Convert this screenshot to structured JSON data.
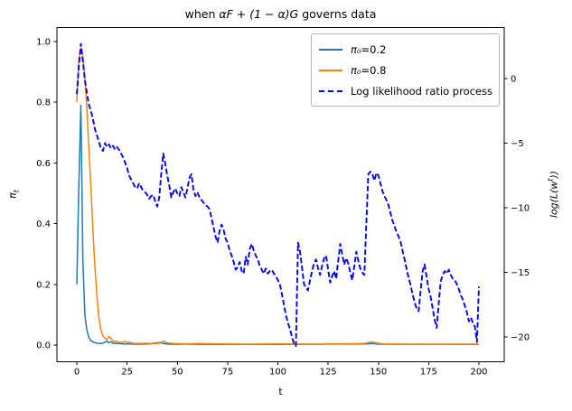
{
  "figure": {
    "title": {
      "pre": "when ",
      "math": "αF + (1 − α)G",
      "post": " governs data"
    },
    "xlabel": "t",
    "ylabel_left": {
      "base": "π",
      "sub": "t"
    },
    "ylabel_right": {
      "pre": "log(L(w",
      "sup": "t",
      "post": "))"
    }
  },
  "legend": {
    "items": [
      {
        "math": "π₀",
        "rest": "=0.2",
        "color": "#1f77b4",
        "dash": false
      },
      {
        "math": "π₀",
        "rest": "=0.8",
        "color": "#ff7f0e",
        "dash": false
      },
      {
        "math": "",
        "rest": "Log likelihood ratio process",
        "color": "#0000ee",
        "dash": true
      }
    ]
  },
  "chart_data": {
    "type": "line",
    "title": "when αF + (1 − α)G governs data",
    "xlabel": "t",
    "ylabel_left": "π_t",
    "ylabel_right": "log(L(w^t))",
    "grid": false,
    "legend_position": "upper right",
    "xlim": [
      -10,
      212
    ],
    "ylim_left": [
      -0.05,
      1.05
    ],
    "ylim_right": [
      -21.9,
      3.9
    ],
    "x_ticks": [
      {
        "v": 0,
        "label": "0"
      },
      {
        "v": 25,
        "label": "25"
      },
      {
        "v": 50,
        "label": "50"
      },
      {
        "v": 75,
        "label": "75"
      },
      {
        "v": 100,
        "label": "100"
      },
      {
        "v": 125,
        "label": "125"
      },
      {
        "v": 150,
        "label": "150"
      },
      {
        "v": 175,
        "label": "175"
      },
      {
        "v": 200,
        "label": "200"
      }
    ],
    "y_left_ticks": [
      {
        "v": 0.0,
        "label": "0.0"
      },
      {
        "v": 0.2,
        "label": "0.2"
      },
      {
        "v": 0.4,
        "label": "0.4"
      },
      {
        "v": 0.6,
        "label": "0.6"
      },
      {
        "v": 0.8,
        "label": "0.8"
      },
      {
        "v": 1.0,
        "label": "1.0"
      }
    ],
    "y_right_ticks": [
      {
        "v": 0,
        "label": "0"
      },
      {
        "v": -5,
        "label": "−5"
      },
      {
        "v": -10,
        "label": "−10"
      },
      {
        "v": -15,
        "label": "−15"
      },
      {
        "v": -20,
        "label": "−20"
      }
    ],
    "series": [
      {
        "name": "π0=0.2",
        "axis": "left",
        "color": "#1f77b4",
        "style": "solid",
        "width": 1.5,
        "points": [
          [
            0,
            0.2
          ],
          [
            1,
            0.52
          ],
          [
            2,
            0.79
          ],
          [
            3,
            0.28
          ],
          [
            4,
            0.1
          ],
          [
            5,
            0.05
          ],
          [
            6,
            0.025
          ],
          [
            7,
            0.015
          ],
          [
            8,
            0.01
          ],
          [
            9,
            0.008
          ],
          [
            10,
            0.006
          ],
          [
            12,
            0.005
          ],
          [
            14,
            0.009
          ],
          [
            15,
            0.013
          ],
          [
            16,
            0.008
          ],
          [
            17,
            0.011
          ],
          [
            18,
            0.006
          ],
          [
            20,
            0.005
          ],
          [
            24,
            0.004
          ],
          [
            30,
            0.003
          ],
          [
            36,
            0.004
          ],
          [
            39,
            0.007
          ],
          [
            41,
            0.008
          ],
          [
            43,
            0.005
          ],
          [
            46,
            0.003
          ],
          [
            55,
            0.003
          ],
          [
            70,
            0.002
          ],
          [
            100,
            0.002
          ],
          [
            144,
            0.004
          ],
          [
            147,
            0.005
          ],
          [
            150,
            0.003
          ],
          [
            200,
            0.002
          ]
        ]
      },
      {
        "name": "π0=0.8",
        "axis": "left",
        "color": "#ff7f0e",
        "style": "solid",
        "width": 1.5,
        "points": [
          [
            0,
            0.8
          ],
          [
            1,
            0.94
          ],
          [
            2,
            0.98
          ],
          [
            3,
            0.95
          ],
          [
            4,
            0.88
          ],
          [
            5,
            0.78
          ],
          [
            6,
            0.65
          ],
          [
            7,
            0.52
          ],
          [
            8,
            0.38
          ],
          [
            9,
            0.26
          ],
          [
            10,
            0.16
          ],
          [
            11,
            0.09
          ],
          [
            12,
            0.05
          ],
          [
            13,
            0.03
          ],
          [
            14,
            0.022
          ],
          [
            15,
            0.018
          ],
          [
            16,
            0.028
          ],
          [
            17,
            0.022
          ],
          [
            18,
            0.013
          ],
          [
            19,
            0.011
          ],
          [
            20,
            0.012
          ],
          [
            21,
            0.009
          ],
          [
            22,
            0.008
          ],
          [
            24,
            0.012
          ],
          [
            25,
            0.008
          ],
          [
            26,
            0.01
          ],
          [
            28,
            0.006
          ],
          [
            30,
            0.005
          ],
          [
            34,
            0.006
          ],
          [
            38,
            0.005
          ],
          [
            41,
            0.006
          ],
          [
            43,
            0.013
          ],
          [
            45,
            0.007
          ],
          [
            48,
            0.005
          ],
          [
            55,
            0.004
          ],
          [
            60,
            0.005
          ],
          [
            70,
            0.004
          ],
          [
            85,
            0.003
          ],
          [
            100,
            0.004
          ],
          [
            120,
            0.003
          ],
          [
            143,
            0.005
          ],
          [
            146,
            0.01
          ],
          [
            148,
            0.008
          ],
          [
            152,
            0.004
          ],
          [
            165,
            0.003
          ],
          [
            200,
            0.003
          ]
        ]
      },
      {
        "name": "Log likelihood ratio process",
        "axis": "right",
        "color": "#0000ee",
        "style": "dashed",
        "width": 1.9,
        "points": [
          [
            0,
            -1.2
          ],
          [
            1,
            0.9
          ],
          [
            2,
            2.7
          ],
          [
            3,
            1.4
          ],
          [
            4,
            -0.1
          ],
          [
            5,
            -1.1
          ],
          [
            6,
            -2.0
          ],
          [
            7,
            -2.5
          ],
          [
            8,
            -3.1
          ],
          [
            9,
            -3.9
          ],
          [
            10,
            -4.4
          ],
          [
            11,
            -4.9
          ],
          [
            12,
            -5.4
          ],
          [
            13,
            -5.6
          ],
          [
            14,
            -5.0
          ],
          [
            15,
            -5.3
          ],
          [
            16,
            -5.1
          ],
          [
            17,
            -5.4
          ],
          [
            18,
            -5.2
          ],
          [
            19,
            -5.5
          ],
          [
            20,
            -5.3
          ],
          [
            21,
            -5.5
          ],
          [
            22,
            -5.8
          ],
          [
            23,
            -6.1
          ],
          [
            24,
            -6.5
          ],
          [
            25,
            -6.9
          ],
          [
            26,
            -7.5
          ],
          [
            27,
            -7.8
          ],
          [
            28,
            -8.1
          ],
          [
            29,
            -8.4
          ],
          [
            30,
            -8.5
          ],
          [
            31,
            -8.1
          ],
          [
            32,
            -8.4
          ],
          [
            33,
            -8.7
          ],
          [
            34,
            -8.8
          ],
          [
            35,
            -9.0
          ],
          [
            36,
            -9.3
          ],
          [
            37,
            -9.1
          ],
          [
            38,
            -9.0
          ],
          [
            39,
            -9.5
          ],
          [
            40,
            -9.9
          ],
          [
            41,
            -9.2
          ],
          [
            42,
            -7.4
          ],
          [
            43,
            -5.8
          ],
          [
            44,
            -6.6
          ],
          [
            45,
            -7.5
          ],
          [
            46,
            -8.3
          ],
          [
            47,
            -9.2
          ],
          [
            48,
            -8.8
          ],
          [
            49,
            -8.5
          ],
          [
            50,
            -8.9
          ],
          [
            51,
            -9.1
          ],
          [
            52,
            -8.4
          ],
          [
            53,
            -8.8
          ],
          [
            54,
            -9.2
          ],
          [
            55,
            -8.5
          ],
          [
            56,
            -7.7
          ],
          [
            57,
            -7.4
          ],
          [
            58,
            -8.6
          ],
          [
            59,
            -9.1
          ],
          [
            60,
            -8.8
          ],
          [
            61,
            -9.2
          ],
          [
            62,
            -9.4
          ],
          [
            63,
            -9.6
          ],
          [
            64,
            -9.8
          ],
          [
            65,
            -9.9
          ],
          [
            66,
            -10.1
          ],
          [
            67,
            -10.8
          ],
          [
            68,
            -11.5
          ],
          [
            69,
            -12.2
          ],
          [
            70,
            -12.7
          ],
          [
            71,
            -11.8
          ],
          [
            72,
            -11.3
          ],
          [
            73,
            -11.7
          ],
          [
            74,
            -12.4
          ],
          [
            75,
            -12.7
          ],
          [
            76,
            -13.3
          ],
          [
            77,
            -13.7
          ],
          [
            78,
            -14.2
          ],
          [
            79,
            -14.8
          ],
          [
            80,
            -14.6
          ],
          [
            81,
            -14.2
          ],
          [
            82,
            -14.9
          ],
          [
            83,
            -15.1
          ],
          [
            84,
            -13.8
          ],
          [
            85,
            -14.4
          ],
          [
            86,
            -13.2
          ],
          [
            87,
            -12.8
          ],
          [
            88,
            -13.3
          ],
          [
            89,
            -13.7
          ],
          [
            90,
            -14.0
          ],
          [
            91,
            -14.5
          ],
          [
            92,
            -14.8
          ],
          [
            93,
            -15.1
          ],
          [
            94,
            -14.7
          ],
          [
            95,
            -15.1
          ],
          [
            96,
            -14.9
          ],
          [
            97,
            -14.8
          ],
          [
            98,
            -15.1
          ],
          [
            99,
            -15.3
          ],
          [
            100,
            -15.6
          ],
          [
            101,
            -15.9
          ],
          [
            102,
            -16.7
          ],
          [
            103,
            -17.5
          ],
          [
            104,
            -18.3
          ],
          [
            105,
            -18.9
          ],
          [
            106,
            -19.4
          ],
          [
            107,
            -20.0
          ],
          [
            108,
            -20.5
          ],
          [
            109,
            -20.7
          ],
          [
            110,
            -12.7
          ],
          [
            111,
            -13.4
          ],
          [
            112,
            -14.6
          ],
          [
            113,
            -15.9
          ],
          [
            114,
            -16.2
          ],
          [
            115,
            -16.4
          ],
          [
            116,
            -15.6
          ],
          [
            117,
            -14.9
          ],
          [
            118,
            -14.3
          ],
          [
            119,
            -14.0
          ],
          [
            120,
            -14.7
          ],
          [
            121,
            -15.2
          ],
          [
            122,
            -14.5
          ],
          [
            123,
            -13.9
          ],
          [
            124,
            -13.7
          ],
          [
            125,
            -14.8
          ],
          [
            126,
            -15.8
          ],
          [
            127,
            -15.3
          ],
          [
            128,
            -14.9
          ],
          [
            129,
            -15.5
          ],
          [
            130,
            -14.1
          ],
          [
            131,
            -12.8
          ],
          [
            132,
            -13.6
          ],
          [
            133,
            -14.4
          ],
          [
            134,
            -13.9
          ],
          [
            135,
            -14.3
          ],
          [
            136,
            -15.0
          ],
          [
            137,
            -15.6
          ],
          [
            138,
            -14.5
          ],
          [
            139,
            -13.4
          ],
          [
            140,
            -14.1
          ],
          [
            141,
            -14.7
          ],
          [
            142,
            -15.0
          ],
          [
            143,
            -15.2
          ],
          [
            144,
            -11.2
          ],
          [
            145,
            -7.4
          ],
          [
            146,
            -7.2
          ],
          [
            147,
            -7.4
          ],
          [
            148,
            -7.9
          ],
          [
            149,
            -7.3
          ],
          [
            150,
            -7.5
          ],
          [
            151,
            -8.1
          ],
          [
            152,
            -8.7
          ],
          [
            153,
            -9.1
          ],
          [
            154,
            -9.4
          ],
          [
            155,
            -9.8
          ],
          [
            156,
            -10.4
          ],
          [
            157,
            -11.0
          ],
          [
            158,
            -11.4
          ],
          [
            159,
            -11.9
          ],
          [
            160,
            -12.2
          ],
          [
            161,
            -12.6
          ],
          [
            162,
            -13.3
          ],
          [
            163,
            -14.0
          ],
          [
            164,
            -14.7
          ],
          [
            165,
            -15.4
          ],
          [
            166,
            -16.0
          ],
          [
            167,
            -16.7
          ],
          [
            168,
            -17.3
          ],
          [
            169,
            -17.8
          ],
          [
            170,
            -18.0
          ],
          [
            171,
            -16.4
          ],
          [
            172,
            -14.9
          ],
          [
            173,
            -14.4
          ],
          [
            174,
            -15.4
          ],
          [
            175,
            -16.3
          ],
          [
            176,
            -16.9
          ],
          [
            177,
            -17.8
          ],
          [
            178,
            -18.7
          ],
          [
            179,
            -19.3
          ],
          [
            180,
            -17.4
          ],
          [
            181,
            -15.7
          ],
          [
            182,
            -15.2
          ],
          [
            183,
            -14.9
          ],
          [
            184,
            -15.1
          ],
          [
            185,
            -14.8
          ],
          [
            186,
            -15.2
          ],
          [
            187,
            -15.5
          ],
          [
            188,
            -15.6
          ],
          [
            189,
            -15.9
          ],
          [
            190,
            -16.3
          ],
          [
            191,
            -16.8
          ],
          [
            192,
            -17.1
          ],
          [
            193,
            -17.6
          ],
          [
            194,
            -18.1
          ],
          [
            195,
            -18.8
          ],
          [
            196,
            -18.5
          ],
          [
            197,
            -18.9
          ],
          [
            198,
            -19.2
          ],
          [
            199,
            -20.4
          ],
          [
            200,
            -16.1
          ]
        ]
      }
    ]
  }
}
